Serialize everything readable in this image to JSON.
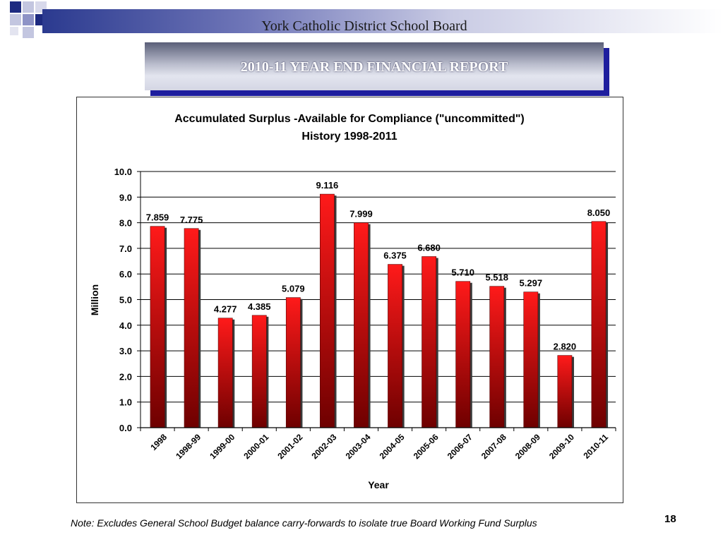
{
  "header": {
    "org_name": "York Catholic District School Board"
  },
  "banner": {
    "title": "2010-11 YEAR END FINANCIAL REPORT"
  },
  "footer": {
    "note": "Note:  Excludes General School Budget balance carry-forwards to isolate true Board Working Fund Surplus",
    "page_number": "18"
  },
  "colors": {
    "bar_top": "#ff1a1a",
    "bar_bottom": "#6e0000",
    "banner_shadow": "#1e1e9e",
    "header_accent": "#2b3a8f"
  },
  "chart_data": {
    "type": "bar",
    "title": "Accumulated Surplus -Available for Compliance (\"uncommitted\")",
    "subtitle": "History  1998-2011",
    "xlabel": "Year",
    "ylabel": "Million",
    "ylim": [
      0,
      10
    ],
    "yticks": [
      "0.0",
      "1.0",
      "2.0",
      "3.0",
      "4.0",
      "5.0",
      "6.0",
      "7.0",
      "8.0",
      "9.0",
      "10.0"
    ],
    "grid": true,
    "categories": [
      "1998",
      "1998-99",
      "1999-00",
      "2000-01",
      "2001-02",
      "2002-03",
      "2003-04",
      "2004-05",
      "2005-06",
      "2006-07",
      "2007-08",
      "2008-09",
      "2009-10",
      "2010-11"
    ],
    "values": [
      7.859,
      7.775,
      4.277,
      4.385,
      5.079,
      9.116,
      7.999,
      6.375,
      6.68,
      5.71,
      5.518,
      5.297,
      2.82,
      8.05
    ],
    "data_labels": [
      "7.859",
      "7.775",
      "4.277",
      "4.385",
      "5.079",
      "9.116",
      "7.999",
      "6.375",
      "6.680",
      "5.710",
      "5.518",
      "5.297",
      "2.820",
      "8.050"
    ]
  }
}
